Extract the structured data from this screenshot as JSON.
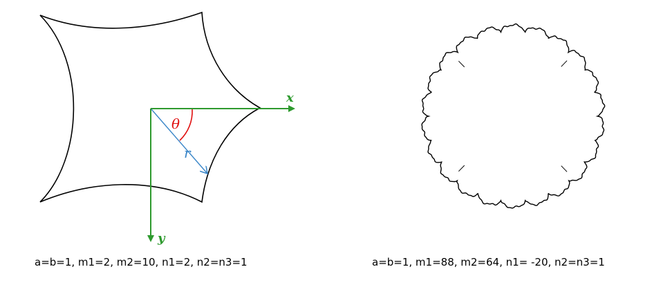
{
  "left_figure": {
    "params": {
      "a": 1,
      "b": 1,
      "m1": 2,
      "m2": 10,
      "n1": 2,
      "n2": 1,
      "n3": 1
    },
    "caption": "a=b=1, m1=2, m2=10, n1=2, n2=n3=1",
    "axis_x_label": "x",
    "axis_y_label": "y",
    "angle_label": "θ",
    "radius_label": "r"
  },
  "right_figure": {
    "params": {
      "a": 1,
      "b": 1,
      "m1": 88,
      "m2": 64,
      "n1": -20,
      "n2": 1,
      "n3": 1
    },
    "caption": "a=b=1, m1=88, m2=64, n1= -20, n2=n3=1"
  },
  "colors": {
    "curve": "#000000",
    "axis": "#2e9a2e",
    "angle": "#e01010",
    "radius": "#3a86c8"
  }
}
